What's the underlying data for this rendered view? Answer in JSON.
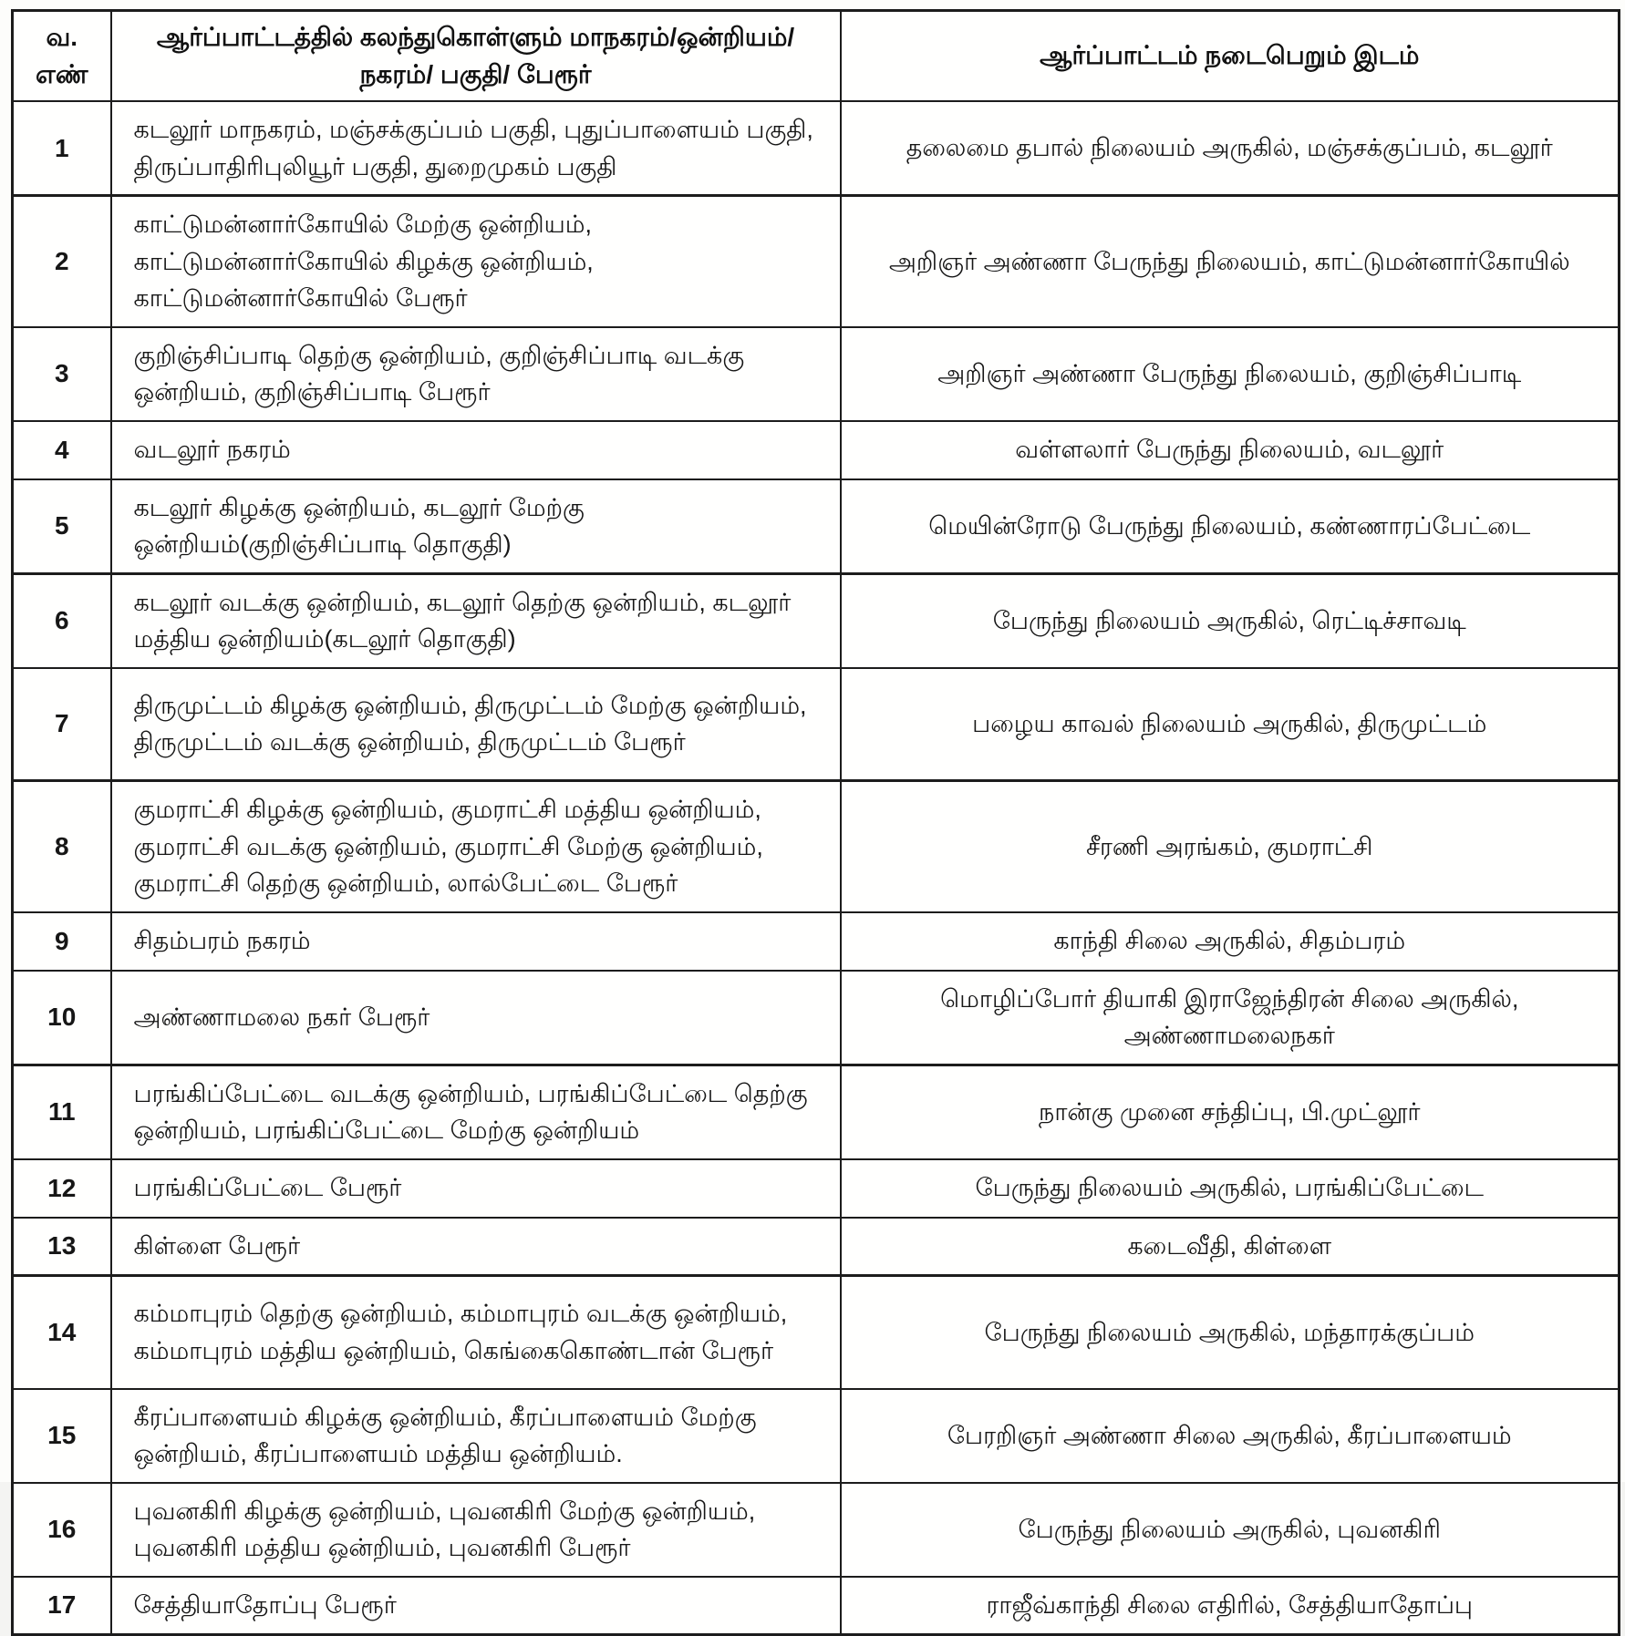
{
  "document": {
    "type": "scanned-protest-schedule-table",
    "language": "Tamil"
  },
  "colors": {
    "text": "#161616",
    "border": "#1c1c1c",
    "background": "#fffffe"
  },
  "table": {
    "headers": {
      "sno": "வ.\nஎண்",
      "areas": "ஆர்ப்பாட்டத்தில் கலந்துகொள்ளும் மாநகரம்/ஒன்றியம்/\nநகரம்/ பகுதி/ பேரூர்",
      "venue": "ஆர்ப்பாட்டம் நடைபெறும் இடம்"
    },
    "rows": [
      {
        "sno": "1",
        "areas": "கடலூர் மாநகரம், மஞ்சக்குப்பம் பகுதி, புதுப்பாளையம் பகுதி, திருப்பாதிரிபுலியூர் பகுதி, துறைமுகம் பகுதி",
        "venue": "தலைமை தபால் நிலையம் அருகில், மஞ்சக்குப்பம், கடலூர்"
      },
      {
        "sno": "2",
        "areas": "காட்டுமன்னார்கோயில் மேற்கு ஒன்றியம், காட்டுமன்னார்கோயில் கிழக்கு ஒன்றியம், காட்டுமன்னார்கோயில் பேரூர்",
        "venue": "அறிஞர் அண்ணா பேருந்து நிலையம், காட்டுமன்னார்கோயில்"
      },
      {
        "sno": "3",
        "areas": "குறிஞ்சிப்பாடி தெற்கு ஒன்றியம், குறிஞ்சிப்பாடி வடக்கு ஒன்றியம், குறிஞ்சிப்பாடி பேரூர்",
        "venue": "அறிஞர் அண்ணா பேருந்து நிலையம், குறிஞ்சிப்பாடி"
      },
      {
        "sno": "4",
        "areas": "வடலூர் நகரம்",
        "venue": "வள்ளலார் பேருந்து நிலையம், வடலூர்"
      },
      {
        "sno": "5",
        "areas": "கடலூர் கிழக்கு ஒன்றியம், கடலூர் மேற்கு ஒன்றியம்(குறிஞ்சிப்பாடி தொகுதி)",
        "venue": "மெயின்ரோடு பேருந்து நிலையம், கண்ணாரப்பேட்டை"
      },
      {
        "sno": "6",
        "areas": "கடலூர் வடக்கு ஒன்றியம், கடலூர் தெற்கு ஒன்றியம், கடலூர் மத்திய ஒன்றியம்(கடலூர் தொகுதி)",
        "venue": "பேருந்து நிலையம் அருகில், ரெட்டிச்சாவடி"
      },
      {
        "sno": "7",
        "areas": "திருமுட்டம் கிழக்கு ஒன்றியம், திருமுட்டம் மேற்கு ஒன்றியம், திருமுட்டம் வடக்கு ஒன்றியம், திருமுட்டம் பேரூர்",
        "venue": "பழைய காவல் நிலையம் அருகில், திருமுட்டம்"
      },
      {
        "sno": "8",
        "areas": "குமராட்சி கிழக்கு ஒன்றியம், குமராட்சி மத்திய ஒன்றியம், குமராட்சி வடக்கு ஒன்றியம், குமராட்சி மேற்கு ஒன்றியம், குமராட்சி தெற்கு ஒன்றியம், லால்பேட்டை பேரூர்",
        "venue": "சீரணி அரங்கம், குமராட்சி"
      },
      {
        "sno": "9",
        "areas": "சிதம்பரம் நகரம்",
        "venue": "காந்தி சிலை அருகில், சிதம்பரம்"
      },
      {
        "sno": "10",
        "areas": "அண்ணாமலை நகர் பேரூர்",
        "venue": "மொழிப்போர் தியாகி இராஜேந்திரன் சிலை அருகில், அண்ணாமலைநகர்"
      },
      {
        "sno": "11",
        "areas": "பரங்கிப்பேட்டை வடக்கு ஒன்றியம், பரங்கிப்பேட்டை தெற்கு ஒன்றியம், பரங்கிப்பேட்டை மேற்கு ஒன்றியம்",
        "venue": "நான்கு முனை சந்திப்பு, பி.முட்லூர்"
      },
      {
        "sno": "12",
        "areas": "பரங்கிப்பேட்டை பேரூர்",
        "venue": "பேருந்து நிலையம் அருகில், பரங்கிப்பேட்டை"
      },
      {
        "sno": "13",
        "areas": "கிள்ளை பேரூர்",
        "venue": "கடைவீதி, கிள்ளை"
      },
      {
        "sno": "14",
        "areas": "கம்மாபுரம் தெற்கு ஒன்றியம், கம்மாபுரம் வடக்கு ஒன்றியம், கம்மாபுரம் மத்திய ஒன்றியம், கெங்கைகொண்டான் பேரூர்",
        "venue": "பேருந்து நிலையம் அருகில், மந்தாரக்குப்பம்"
      },
      {
        "sno": "15",
        "areas": "கீரப்பாளையம் கிழக்கு ஒன்றியம், கீரப்பாளையம் மேற்கு ஒன்றியம், கீரப்பாளையம் மத்திய ஒன்றியம்.",
        "venue": "பேரறிஞர் அண்ணா சிலை அருகில், கீரப்பாளையம்"
      },
      {
        "sno": "16",
        "areas": "புவனகிரி கிழக்கு ஒன்றியம், புவனகிரி மேற்கு ஒன்றியம், புவனகிரி மத்திய ஒன்றியம், புவனகிரி பேரூர்",
        "venue": "பேருந்து நிலையம் அருகில், புவனகிரி"
      },
      {
        "sno": "17",
        "areas": "சேத்தியாதோப்பு பேரூர்",
        "venue": "ராஜீவ்காந்தி சிலை எதிரில், சேத்தியாதோப்பு"
      }
    ]
  }
}
